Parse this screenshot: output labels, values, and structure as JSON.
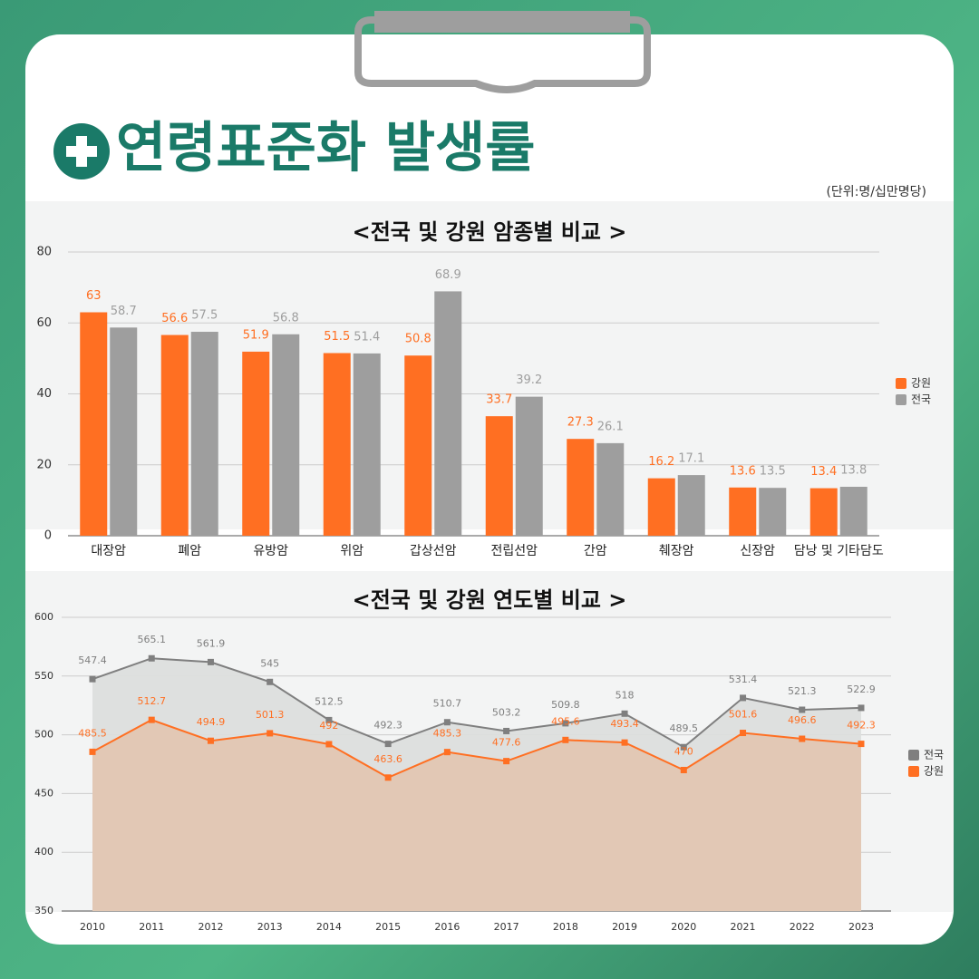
{
  "header": {
    "title": "연령표준화 발생률",
    "unit": "(단위:명/십만명당)"
  },
  "chart_data": [
    {
      "type": "bar",
      "title": "<전국 및 강원 암종별 비교 >",
      "categories": [
        "대장암",
        "폐암",
        "유방암",
        "위암",
        "갑상선암",
        "전립선암",
        "간암",
        "췌장암",
        "신장암",
        "담낭 및 기타담도"
      ],
      "series": [
        {
          "name": "강원",
          "color": "#ff6f22",
          "values": [
            63,
            56.6,
            51.9,
            51.5,
            50.8,
            33.7,
            27.3,
            16.2,
            13.6,
            13.4
          ]
        },
        {
          "name": "전국",
          "color": "#9e9e9e",
          "values": [
            58.7,
            57.5,
            56.8,
            51.4,
            68.9,
            39.2,
            26.1,
            17.1,
            13.5,
            13.8
          ]
        }
      ],
      "ylim": [
        0,
        80
      ],
      "yticks": [
        0,
        20,
        40,
        60,
        80
      ],
      "grid": true,
      "legend": "right"
    },
    {
      "type": "line",
      "title": "<전국 및 강원 연도별 비교 >",
      "categories": [
        "2010",
        "2011",
        "2012",
        "2013",
        "2014",
        "2015",
        "2016",
        "2017",
        "2018",
        "2019",
        "2020",
        "2021",
        "2022",
        "2023"
      ],
      "series": [
        {
          "name": "전국",
          "color": "#7f7f7f",
          "area": "#dcdedd",
          "values": [
            547.4,
            565.1,
            561.9,
            545,
            512.5,
            492.3,
            510.7,
            503.2,
            509.8,
            518,
            489.5,
            531.4,
            521.3,
            522.9
          ]
        },
        {
          "name": "강원",
          "color": "#ff6f22",
          "area": "#e2c6b2",
          "values": [
            485.5,
            512.7,
            494.9,
            501.3,
            492,
            463.6,
            485.3,
            477.6,
            495.6,
            493.4,
            470,
            501.6,
            496.6,
            492.3
          ]
        }
      ],
      "ylim": [
        350,
        600
      ],
      "yticks": [
        350,
        400,
        450,
        500,
        550,
        600
      ],
      "grid": true,
      "legend": "right"
    }
  ]
}
